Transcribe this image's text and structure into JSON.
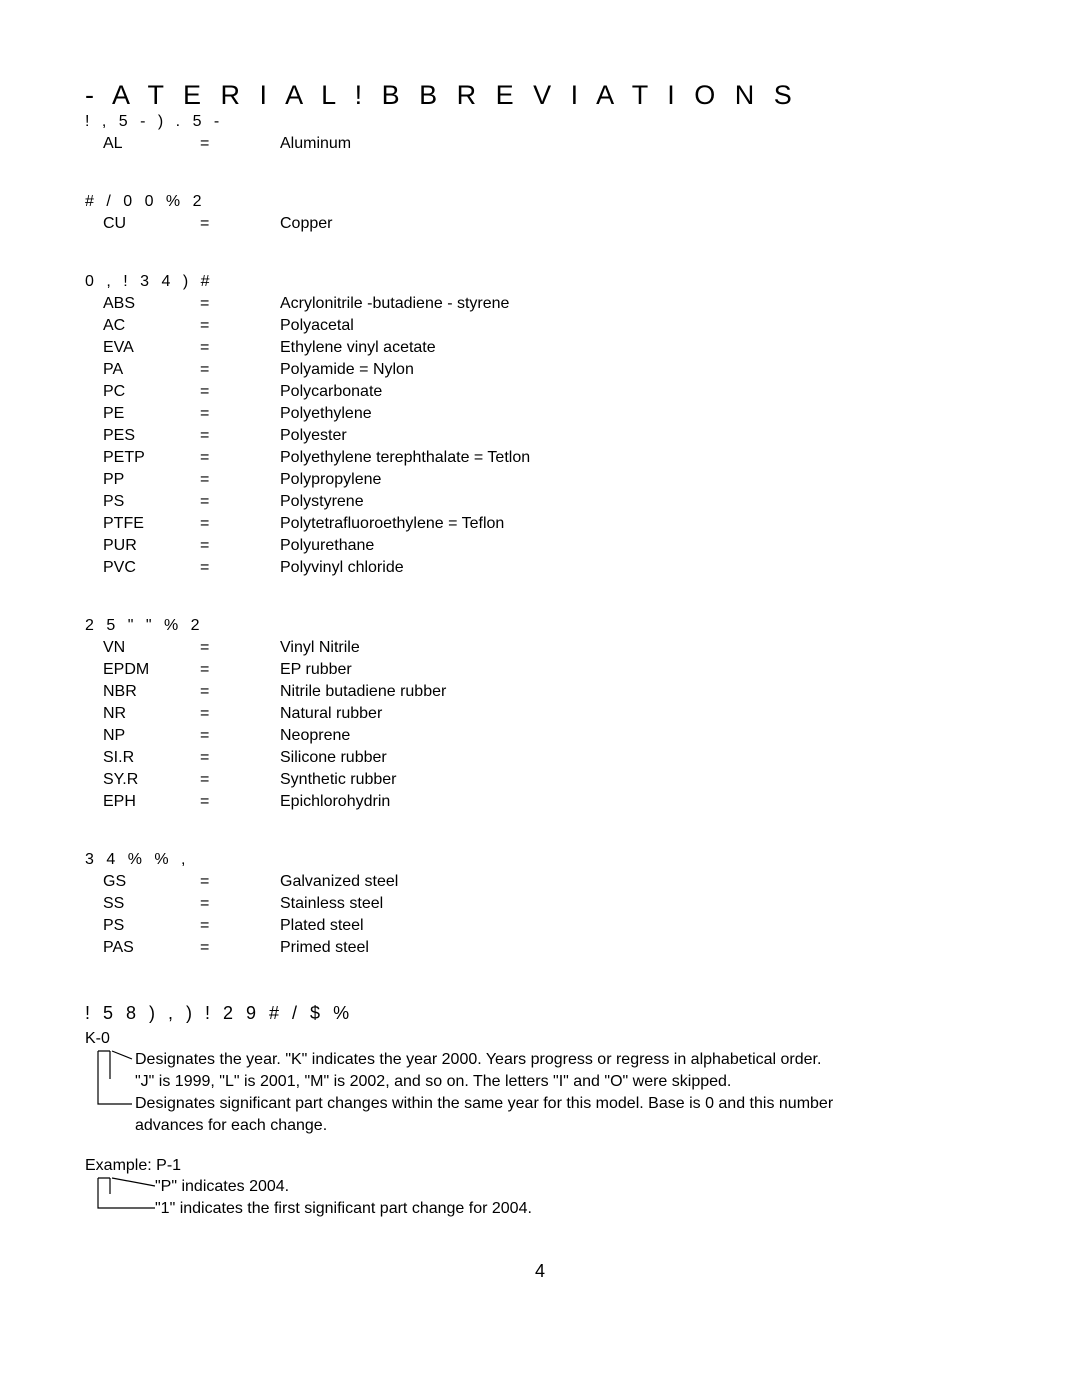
{
  "title": "- A T E R I A L  ! B B R E V I A T I O N S",
  "sections": [
    {
      "header": "! , 5 - ) . 5 -",
      "rows": [
        {
          "abbr": "AL",
          "eq": "=",
          "def": "Aluminum"
        }
      ]
    },
    {
      "header": "# / 0 0 % 2",
      "rows": [
        {
          "abbr": "CU",
          "eq": "=",
          "def": "Copper"
        }
      ]
    },
    {
      "header": "0 , ! 3 4 ) #",
      "rows": [
        {
          "abbr": "ABS",
          "eq": "=",
          "def": "Acrylonitrile -butadiene - styrene"
        },
        {
          "abbr": "AC",
          "eq": "=",
          "def": "Polyacetal"
        },
        {
          "abbr": "EVA",
          "eq": "=",
          "def": "Ethylene vinyl acetate"
        },
        {
          "abbr": "PA",
          "eq": "=",
          "def": "Polyamide = Nylon"
        },
        {
          "abbr": "PC",
          "eq": "=",
          "def": "Polycarbonate"
        },
        {
          "abbr": "PE",
          "eq": "=",
          "def": "Polyethylene"
        },
        {
          "abbr": "PES",
          "eq": "=",
          "def": "Polyester"
        },
        {
          "abbr": "PETP",
          "eq": "=",
          "def": "Polyethylene terephthalate = Tetlon"
        },
        {
          "abbr": "PP",
          "eq": "=",
          "def": "Polypropylene"
        },
        {
          "abbr": "PS",
          "eq": "=",
          "def": "Polystyrene"
        },
        {
          "abbr": "PTFE",
          "eq": "=",
          "def": "Polytetrafluoroethylene = Teflon"
        },
        {
          "abbr": "PUR",
          "eq": "=",
          "def": "Polyurethane"
        },
        {
          "abbr": "PVC",
          "eq": "=",
          "def": "Polyvinyl chloride"
        }
      ]
    },
    {
      "header": "2 5 \" \" % 2",
      "rows": [
        {
          "abbr": "VN",
          "eq": "=",
          "def": "Vinyl Nitrile"
        },
        {
          "abbr": "EPDM",
          "eq": "=",
          "def": "EP rubber"
        },
        {
          "abbr": "NBR",
          "eq": "=",
          "def": "Nitrile butadiene rubber"
        },
        {
          "abbr": "NR",
          "eq": "=",
          "def": "Natural rubber"
        },
        {
          "abbr": "NP",
          "eq": "=",
          "def": "Neoprene"
        },
        {
          "abbr": "SI.R",
          "eq": "=",
          "def": "Silicone rubber"
        },
        {
          "abbr": "SY.R",
          "eq": "=",
          "def": "Synthetic rubber"
        },
        {
          "abbr": "EPH",
          "eq": "=",
          "def": "Epichlorohydrin"
        }
      ]
    },
    {
      "header": "3 4 % % ,",
      "rows": [
        {
          "abbr": "GS",
          "eq": "=",
          "def": "Galvanized steel"
        },
        {
          "abbr": "SS",
          "eq": "=",
          "def": "Stainless steel"
        },
        {
          "abbr": "PS",
          "eq": "=",
          "def": "Plated steel"
        },
        {
          "abbr": "PAS",
          "eq": "=",
          "def": "Primed steel"
        }
      ]
    }
  ],
  "catalog": {
    "title": "! 5 8 ) , ) ! 2 9  # / $ %",
    "code1": "K-0",
    "notes1": [
      "Designates the year. \"K\" indicates the year 2000. Years progress or regress in alphabetical order.",
      "\"J\" is 1999, \"L\" is 2001, \"M\" is 2002, and so on. The letters \"I\" and \"O\" were skipped.",
      "Designates significant part changes within the same year for this model. Base is 0 and this number",
      "advances for each change."
    ],
    "example_label": "Example: P-1",
    "notes2": [
      "\"P\" indicates 2004.",
      "\"1\" indicates the first significant part change for 2004."
    ]
  },
  "page_number": "4"
}
